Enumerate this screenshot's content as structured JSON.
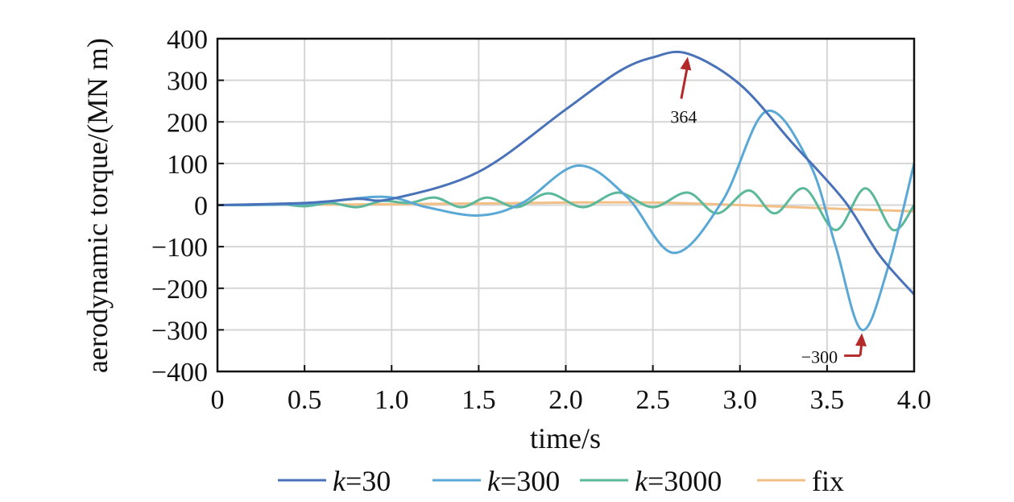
{
  "chart_data": {
    "type": "line",
    "xlabel": "time/s",
    "ylabel": "aerodynamic torque/(MN m)",
    "xlim": [
      0,
      4
    ],
    "ylim": [
      -400,
      400
    ],
    "x_ticks": [
      0,
      0.5,
      1.0,
      1.5,
      2.0,
      2.5,
      3.0,
      3.5,
      4.0
    ],
    "x_tick_labels": [
      "0",
      "0.5",
      "1.0",
      "1.5",
      "2.0",
      "2.5",
      "3.0",
      "3.5",
      "4.0"
    ],
    "y_ticks": [
      400,
      300,
      200,
      100,
      0,
      -100,
      -200,
      -300,
      -400
    ],
    "y_tick_labels": [
      "400",
      "300",
      "200",
      "100",
      "0",
      "−100",
      "−200",
      "−300",
      "−400"
    ],
    "grid": true,
    "legend_position": "bottom",
    "series": [
      {
        "name_var": "k",
        "name_rest": "=30",
        "color": "#4a72b8",
        "x": [
          0,
          0.5,
          0.8,
          1.0,
          1.5,
          2.0,
          2.3,
          2.5,
          2.7,
          3.0,
          3.3,
          3.6,
          3.8,
          4.0
        ],
        "y": [
          0,
          5,
          15,
          15,
          80,
          230,
          320,
          355,
          364,
          290,
          150,
          10,
          -120,
          -215
        ]
      },
      {
        "name_var": "k",
        "name_rest": "=300",
        "color": "#5aa8d6",
        "x": [
          0,
          0.5,
          0.95,
          1.2,
          1.5,
          1.75,
          2.07,
          2.35,
          2.62,
          2.9,
          3.15,
          3.4,
          3.55,
          3.7,
          3.85,
          4.0
        ],
        "y": [
          0,
          3,
          20,
          -5,
          -25,
          5,
          95,
          20,
          -115,
          10,
          225,
          100,
          -100,
          -300,
          -150,
          100
        ]
      },
      {
        "name_var": "k",
        "name_rest": "=3000",
        "color": "#5bb89a",
        "x": [
          0,
          0.2,
          0.35,
          0.5,
          0.65,
          0.8,
          0.95,
          1.1,
          1.25,
          1.4,
          1.55,
          1.72,
          1.9,
          2.1,
          2.3,
          2.5,
          2.7,
          2.87,
          3.05,
          3.2,
          3.37,
          3.55,
          3.72,
          3.88,
          4.0
        ],
        "y": [
          0,
          0,
          3,
          -3,
          5,
          -5,
          10,
          5,
          18,
          -5,
          18,
          -5,
          28,
          -5,
          30,
          -5,
          30,
          -20,
          35,
          -20,
          40,
          -60,
          40,
          -60,
          0
        ]
      },
      {
        "name_var": "",
        "name_rest": "fix",
        "color": "#f2bf86",
        "x": [
          0,
          1.0,
          2.0,
          2.5,
          3.0,
          3.5,
          4.0
        ],
        "y": [
          0,
          2,
          6,
          6,
          0,
          -8,
          -15
        ]
      }
    ],
    "annotations": [
      {
        "text": "364",
        "x": 2.7,
        "y": 364,
        "arrow_color": "#b22a2a"
      },
      {
        "text": "−300",
        "x": 3.7,
        "y": -300,
        "arrow_color": "#b22a2a"
      }
    ]
  }
}
